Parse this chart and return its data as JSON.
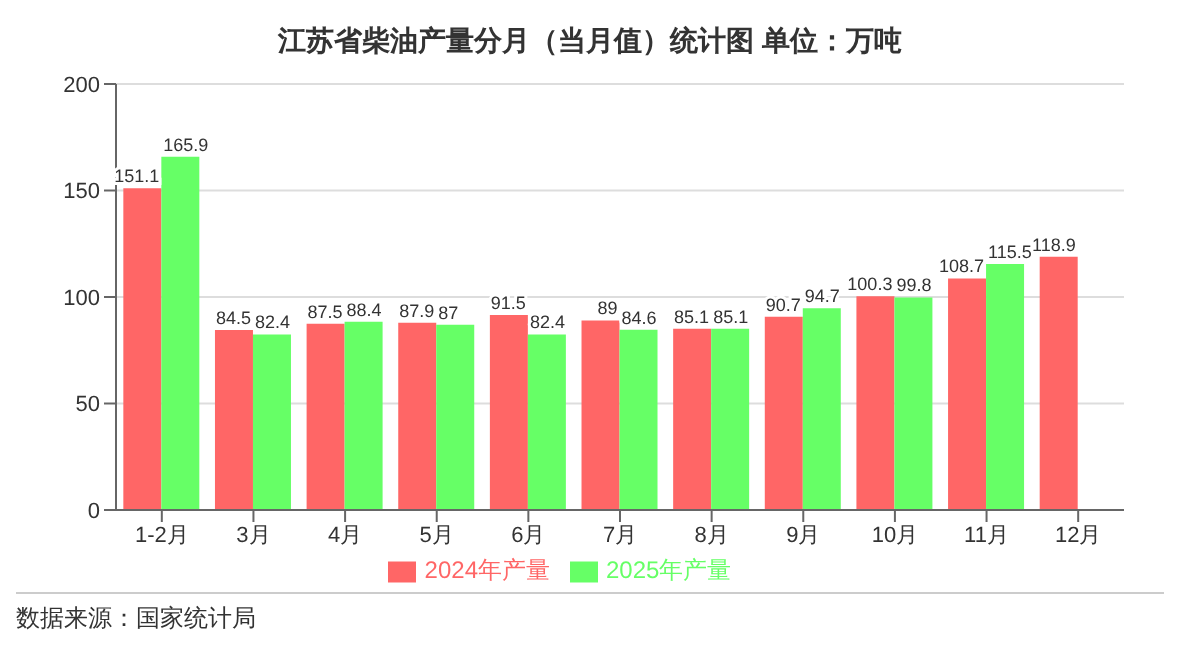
{
  "chart_data": {
    "type": "bar",
    "title": "江苏省柴油产量分月（当月值）统计图 单位：万吨",
    "categories": [
      "1-2月",
      "3月",
      "4月",
      "5月",
      "6月",
      "7月",
      "8月",
      "9月",
      "10月",
      "11月",
      "12月"
    ],
    "series": [
      {
        "name": "2024年产量",
        "color": "#ff6666",
        "values": [
          151.1,
          84.5,
          87.5,
          87.9,
          91.5,
          89,
          85.1,
          90.7,
          100.3,
          108.7,
          118.9
        ]
      },
      {
        "name": "2025年产量",
        "color": "#66ff66",
        "values": [
          165.9,
          82.4,
          88.4,
          87,
          82.4,
          84.6,
          85.1,
          94.7,
          99.8,
          115.5,
          null
        ]
      }
    ],
    "ylim": [
      0,
      200
    ],
    "yticks": [
      0,
      50,
      100,
      150,
      200
    ],
    "grid": "y",
    "legend": "bottom",
    "data_labels": true,
    "annotations": [
      "数据来源：国家统计局"
    ]
  }
}
